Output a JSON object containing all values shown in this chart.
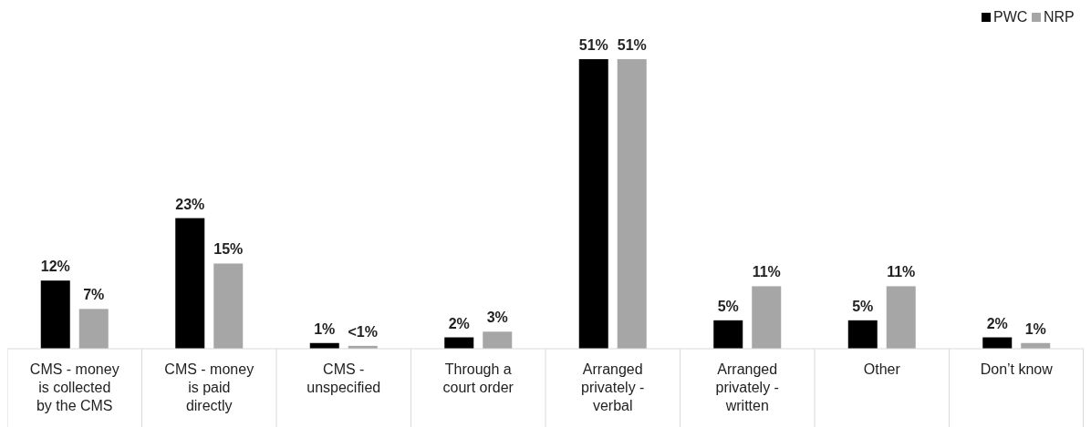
{
  "chart_data": {
    "type": "bar",
    "categories": [
      "CMS - money is collected by the CMS",
      "CMS - money is paid directly",
      "CMS - unspecified",
      "Through a court order",
      "Arranged privately - verbal",
      "Arranged privately - written",
      "Other",
      "Don’t know"
    ],
    "series": [
      {
        "name": "PWC",
        "color": "#000000",
        "values": [
          12,
          23,
          1,
          2,
          51,
          5,
          5,
          2
        ],
        "value_labels": [
          "12%",
          "23%",
          "1%",
          "2%",
          "51%",
          "5%",
          "5%",
          "2%"
        ]
      },
      {
        "name": "NRP",
        "color": "#a6a6a6",
        "values": [
          7,
          15,
          0.5,
          3,
          51,
          11,
          11,
          1
        ],
        "value_labels": [
          "7%",
          "15%",
          "<1%",
          "3%",
          "51%",
          "11%",
          "11%",
          "1%"
        ]
      }
    ],
    "ylim": [
      0,
      51
    ],
    "tick_labels": "x",
    "legend": "top right"
  }
}
